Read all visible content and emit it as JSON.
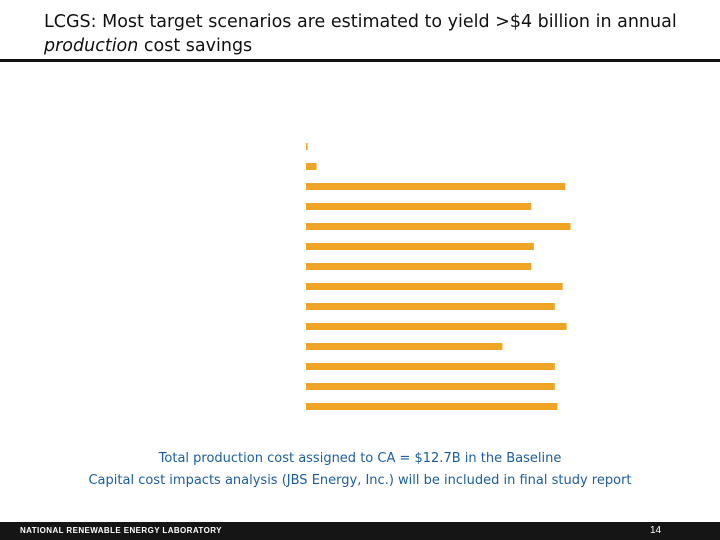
{
  "slide": {
    "title_prefix": "LCGS: Most target scenarios are estimated to yield >$4 billion in annual ",
    "title_emphasis": "production",
    "title_suffix": " cost savings",
    "note_line1": "Total production cost assigned to CA = $12.7B in the Baseline",
    "note_line2": "Capital cost impacts analysis (JBS Energy, Inc.) will be included in final study report",
    "footer_org": "NATIONAL RENEWABLE ENERGY LABORATORY",
    "page_number": "14"
  },
  "colors": {
    "bar": "#f0a426",
    "title_text": "#111111",
    "note_text": "#1b5fa0",
    "footer_bg": "#151515"
  },
  "chart_data": {
    "type": "bar",
    "orientation": "horizontal",
    "title": "",
    "xlabel": "",
    "ylabel": "",
    "categories": [
      "",
      "",
      "",
      "",
      "",
      "",
      "",
      "",
      "",
      "",
      "",
      "",
      "",
      ""
    ],
    "values": [
      0.06,
      0.4,
      9.9,
      8.6,
      10.1,
      8.7,
      8.6,
      9.8,
      9.5,
      9.95,
      7.5,
      9.5,
      9.5,
      9.6
    ],
    "xlim": [
      0,
      10.5
    ],
    "grid": false,
    "legend": "none"
  }
}
